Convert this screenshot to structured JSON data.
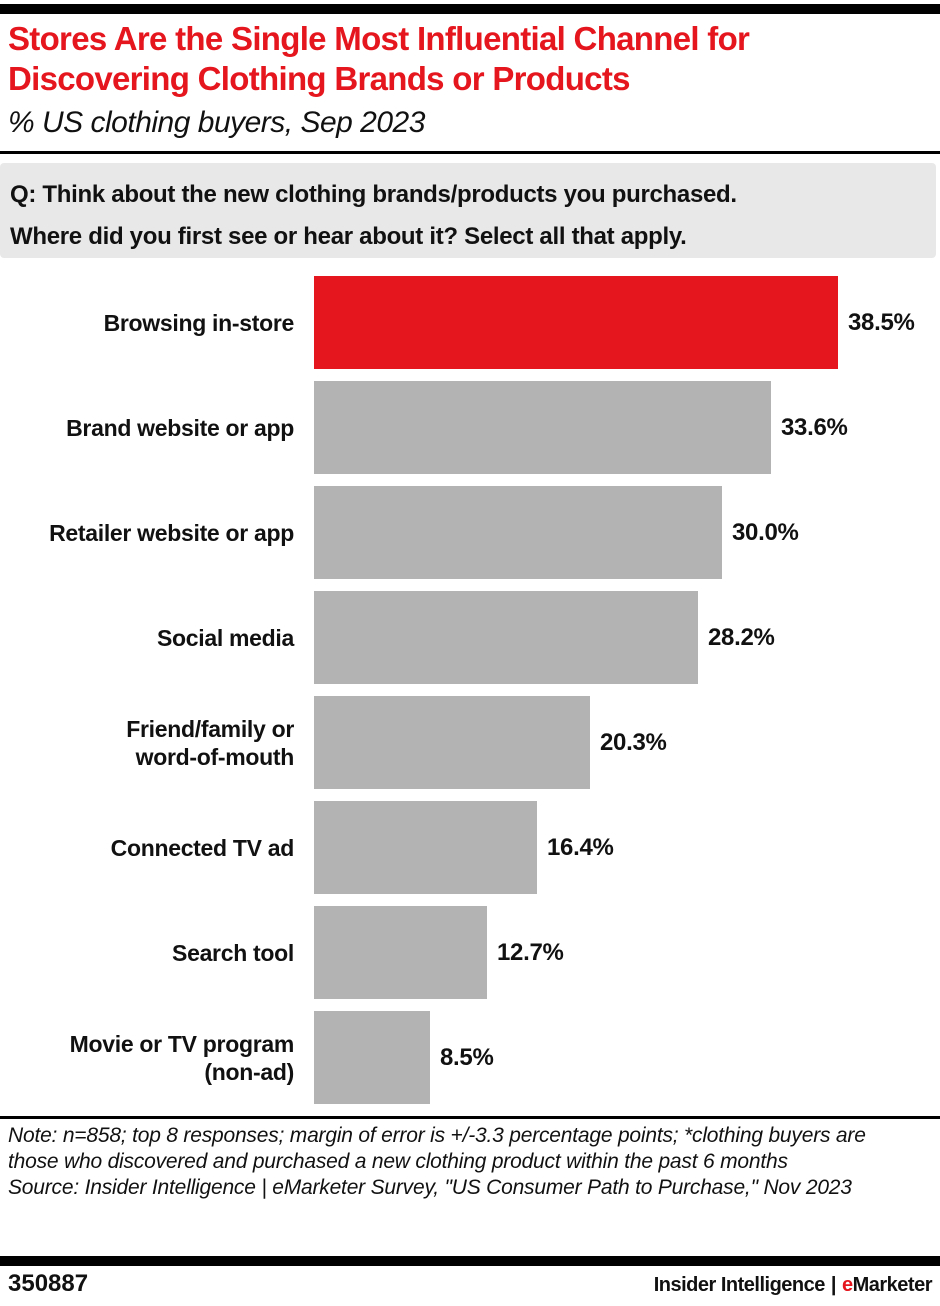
{
  "header": {
    "title_lines": [
      "Stores Are the Single Most Influential Channel for",
      "Discovering Clothing Brands or Products"
    ],
    "subtitle": "% US clothing buyers, Sep 2023"
  },
  "question": {
    "line1": "Q: Think about the new clothing brands/products you purchased.",
    "line2": "Where did you first see or hear about it? Select all that apply."
  },
  "chart_data": {
    "type": "bar",
    "orientation": "horizontal",
    "title": "Stores Are the Single Most Influential Channel for Discovering Clothing Brands or Products",
    "subtitle": "% US clothing buyers, Sep 2023",
    "unit": "%",
    "xlim": [
      0,
      40
    ],
    "axis_visible": false,
    "grid": false,
    "legend": "none",
    "categories": [
      "Browsing in-store",
      "Brand website or app",
      "Retailer website or app",
      "Social media",
      "Friend/family or\nword-of-mouth",
      "Connected TV ad",
      "Search tool",
      "Movie or TV program\n(non-ad)"
    ],
    "values": [
      38.5,
      33.6,
      30.0,
      28.2,
      20.3,
      16.4,
      12.7,
      8.5
    ],
    "value_labels": [
      "38.5%",
      "33.6%",
      "30.0%",
      "28.2%",
      "20.3%",
      "16.4%",
      "12.7%",
      "8.5%"
    ],
    "highlight_index": 0,
    "bar_color_highlight": "#e5161d",
    "bar_color_default": "#b3b3b3"
  },
  "notes": {
    "note": "Note: n=858; top 8 responses; margin of error is +/-3.3 percentage points; *clothing buyers are those who discovered and purchased a new clothing product within the past 6 months",
    "source": "Source: Insider Intelligence | eMarketer Survey, \"US Consumer Path to Purchase,\" Nov 2023"
  },
  "footer": {
    "chart_id": "350887",
    "brand_left": "Insider Intelligence",
    "brand_separator": "|",
    "brand_e": "e",
    "brand_rest": "Marketer"
  },
  "colors": {
    "accent_red": "#e5161d",
    "bar_gray": "#b3b3b3",
    "question_bg": "#e8e8e8",
    "rule_black": "#000000"
  }
}
